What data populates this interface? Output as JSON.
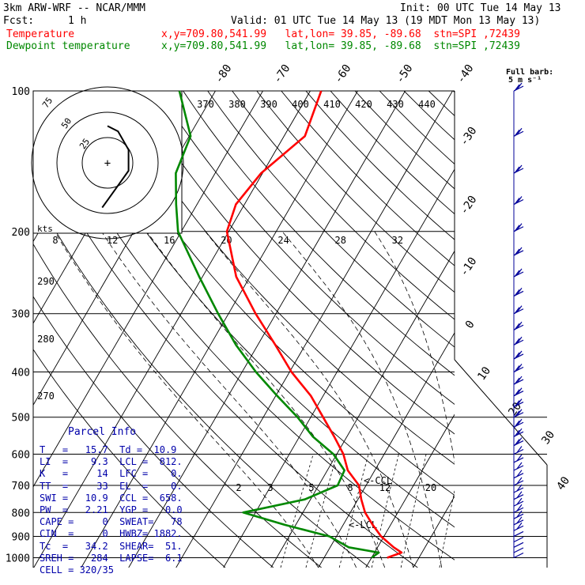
{
  "header": {
    "model": "3km ARW-WRF -- NCAR/MMM",
    "init": "Init: 00 UTC Tue 14 May 13",
    "fcst_label": "Fcst:",
    "fcst_value": "1 h",
    "valid": "Valid: 01 UTC Tue 14 May 13 (19 MDT Mon 13 May 13)",
    "lines": [
      {
        "label": "Temperature",
        "loc": "x,y=709.80,541.99   lat,lon= 39.85, -89.68  stn=SPI ,72439",
        "color": "#ff0000"
      },
      {
        "label": "Dewpoint temperature",
        "loc": "x,y=709.80,541.99   lat,lon= 39.85, -89.68  stn=SPI ,72439",
        "color": "#008800"
      }
    ]
  },
  "barb_legend": {
    "line1": "Full barb:",
    "line2": "5 m s⁻¹"
  },
  "hodograph": {
    "speed_unit": "kts",
    "ring_labels": [
      "75",
      "50",
      "25"
    ]
  },
  "parcel_info": {
    "title": "Parcel Info",
    "rows": [
      "T   =   15.7  Td =  10.9",
      "LI  =    9.3  LCL =  812.",
      "K   =     14  LFC =    0.",
      "TT  =     33  EL  =    0.",
      "SWI =   10.9  CCL =  658.",
      "PW  =   2.21  YGP =   0.0",
      "CAPE =     0  SWEAT=   78",
      "CIN  =     0  HWBZ= 1882.",
      "Tc  =   34.2  SHEAR=  51.",
      "SREH =   284  LAPSE=  6.1",
      "CELL = 320/35"
    ]
  },
  "colors": {
    "temperature": "#ff0000",
    "dewpoint": "#008800",
    "parcel_text": "#0000aa",
    "barbs": "#000099"
  },
  "chart_data": {
    "type": "line",
    "title": "",
    "ylabel": "",
    "y_axis": "pressure (hPa), log scale",
    "y_ticks": [
      100,
      200,
      300,
      400,
      500,
      600,
      700,
      800,
      900,
      1000
    ],
    "isotherm_labels": [
      "-80",
      "-70",
      "-60",
      "-50",
      "-40",
      "-30",
      "-20",
      "-10",
      "0",
      "10",
      "20",
      "30",
      "40"
    ],
    "theta_labels": [
      "370",
      "380",
      "390",
      "400",
      "410",
      "420",
      "430",
      "440"
    ],
    "theta_side_labels": [
      "290",
      "280",
      "270"
    ],
    "mixing_ratio_labels": [
      "2",
      "3",
      "5",
      "8",
      "12",
      "20"
    ],
    "hodo_speed_ticks": [
      "8",
      "12",
      "16",
      "20",
      "24",
      "28",
      "32"
    ],
    "annotations": [
      "<-CCL",
      "<-LCL"
    ],
    "series": [
      {
        "name": "Temperature",
        "color": "#ff0000",
        "points": [
          [
            1000,
            13.3
          ],
          [
            975,
            15.7
          ],
          [
            950,
            13.4
          ],
          [
            900,
            9.4
          ],
          [
            850,
            6.2
          ],
          [
            800,
            3.1
          ],
          [
            750,
            0.7
          ],
          [
            700,
            -1.5
          ],
          [
            650,
            -5.7
          ],
          [
            600,
            -8.6
          ],
          [
            550,
            -12.7
          ],
          [
            500,
            -17.4
          ],
          [
            450,
            -22.6
          ],
          [
            400,
            -29.6
          ],
          [
            350,
            -36.3
          ],
          [
            300,
            -44.3
          ],
          [
            250,
            -52.9
          ],
          [
            200,
            -60.4
          ],
          [
            175,
            -61.8
          ],
          [
            150,
            -60.3
          ],
          [
            125,
            -55.6
          ],
          [
            100,
            -57.7
          ]
        ]
      },
      {
        "name": "Dewpoint temperature",
        "color": "#008800",
        "points": [
          [
            1000,
            10.0
          ],
          [
            975,
            10.9
          ],
          [
            950,
            3.9
          ],
          [
            900,
            -1.5
          ],
          [
            850,
            -12.4
          ],
          [
            800,
            -22.6
          ],
          [
            750,
            -11.2
          ],
          [
            700,
            -6.0
          ],
          [
            650,
            -6.4
          ],
          [
            600,
            -10.7
          ],
          [
            550,
            -17.2
          ],
          [
            500,
            -22.8
          ],
          [
            450,
            -29.7
          ],
          [
            400,
            -37.1
          ],
          [
            350,
            -44.6
          ],
          [
            300,
            -52.2
          ],
          [
            250,
            -60.7
          ],
          [
            200,
            -70.7
          ],
          [
            175,
            -74.4
          ],
          [
            150,
            -78.3
          ],
          [
            125,
            -79.7
          ],
          [
            100,
            -87.6
          ]
        ]
      }
    ],
    "hodograph_trace_kts": [
      [
        -2,
        -17
      ],
      [
        3,
        -10
      ],
      [
        8,
        -3
      ],
      [
        8,
        5
      ],
      [
        4,
        12
      ],
      [
        0,
        14
      ]
    ]
  }
}
